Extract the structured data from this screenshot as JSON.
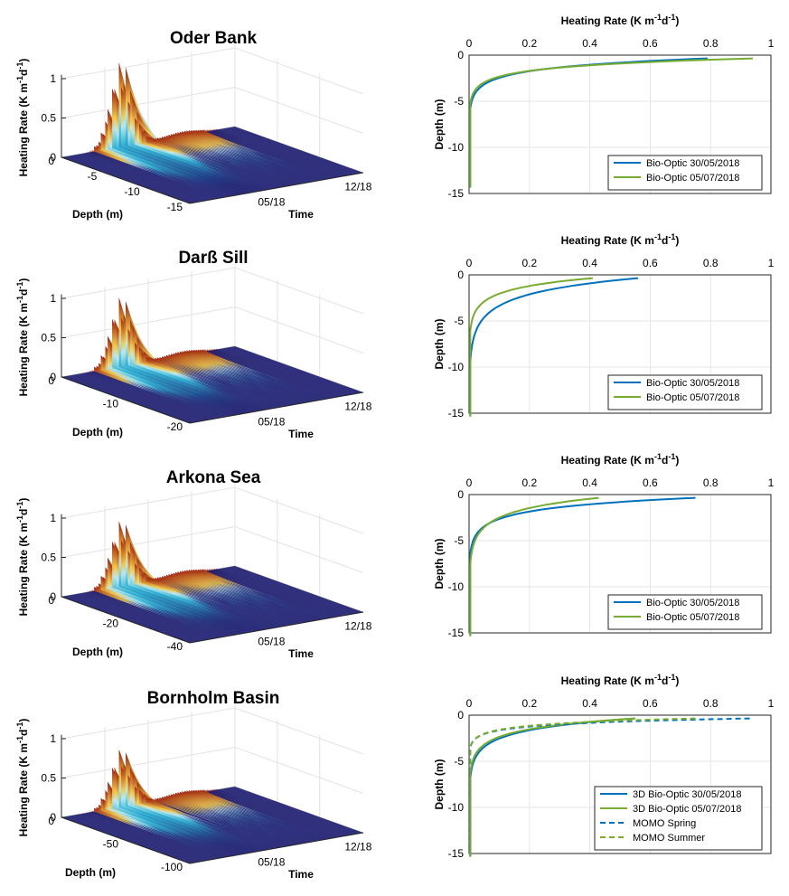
{
  "colors": {
    "spring": "#0072BD",
    "summer": "#77AC30",
    "surface_low": "#1a1a6e",
    "surface_mid": "#34b5d6",
    "surface_high": "#f2c94c",
    "surface_peak": "#9a1b0c"
  },
  "chart_data": [
    {
      "type": "area",
      "title": "Oder Bank",
      "xlabel": "Depth (m)",
      "ylabel": "Time",
      "zlabel": "Heating Rate (K m^-1 d^-1)",
      "depth_ticks": [
        "0",
        "-5",
        "-10",
        "-15"
      ],
      "depth_min": -15,
      "time_ticks": [
        "05/18",
        "12/18"
      ],
      "z_ticks": [
        "0",
        "0.5",
        "1"
      ],
      "zlim": [
        0,
        1
      ],
      "peak_heating_rate": 1.1
    },
    {
      "type": "line",
      "title": "",
      "xlabel": "Heating Rate (K m^-1 d^-1)",
      "ylabel": "Depth (m)",
      "xlim": [
        0,
        1
      ],
      "ylim": [
        -15,
        0
      ],
      "x_ticks": [
        "0",
        "0.2",
        "0.4",
        "0.6",
        "0.8",
        "1"
      ],
      "y_ticks": [
        "0",
        "-5",
        "-10",
        "-15"
      ],
      "series": [
        {
          "name": "Bio-Optic 30/05/2018",
          "style": "solid",
          "color": "spring",
          "surface_value": 0.79,
          "attenuation": 0.85,
          "bottom": -14
        },
        {
          "name": "Bio-Optic 05/07/2018",
          "style": "solid",
          "color": "summer",
          "surface_value": 0.94,
          "attenuation": 1.0,
          "bottom": -14
        }
      ]
    },
    {
      "type": "area",
      "title": "Darß Sill",
      "xlabel": "Depth (m)",
      "ylabel": "Time",
      "zlabel": "Heating Rate (K m^-1 d^-1)",
      "depth_ticks": [
        "0",
        "-10",
        "-20"
      ],
      "depth_min": -20,
      "time_ticks": [
        "05/18",
        "12/18"
      ],
      "z_ticks": [
        "0",
        "0.5",
        "1"
      ],
      "zlim": [
        0,
        1
      ],
      "peak_heating_rate": 0.9
    },
    {
      "type": "line",
      "title": "",
      "xlabel": "Heating Rate (K m^-1 d^-1)",
      "ylabel": "Depth (m)",
      "xlim": [
        0,
        1
      ],
      "ylim": [
        -15,
        0
      ],
      "x_ticks": [
        "0",
        "0.2",
        "0.4",
        "0.6",
        "0.8",
        "1"
      ],
      "y_ticks": [
        "0",
        "-5",
        "-10",
        "-15"
      ],
      "series": [
        {
          "name": "Bio-Optic 30/05/2018",
          "style": "solid",
          "color": "spring",
          "surface_value": 0.56,
          "attenuation": 0.45,
          "bottom": -15
        },
        {
          "name": "Bio-Optic 05/07/2018",
          "style": "solid",
          "color": "summer",
          "surface_value": 0.41,
          "attenuation": 0.7,
          "bottom": -15
        }
      ]
    },
    {
      "type": "area",
      "title": "Arkona Sea",
      "xlabel": "Depth (m)",
      "ylabel": "Time",
      "zlabel": "Heating Rate (K m^-1 d^-1)",
      "depth_ticks": [
        "0",
        "-20",
        "-40"
      ],
      "depth_min": -40,
      "time_ticks": [
        "05/18",
        "12/18"
      ],
      "z_ticks": [
        "0",
        "0.5",
        "1"
      ],
      "zlim": [
        0,
        1
      ],
      "peak_heating_rate": 0.85
    },
    {
      "type": "line",
      "title": "",
      "xlabel": "Heating Rate (K m^-1 d^-1)",
      "ylabel": "Depth (m)",
      "xlim": [
        0,
        1
      ],
      "ylim": [
        -15,
        0
      ],
      "x_ticks": [
        "0",
        "0.2",
        "0.4",
        "0.6",
        "0.8",
        "1"
      ],
      "y_ticks": [
        "0",
        "-5",
        "-10",
        "-15"
      ],
      "series": [
        {
          "name": "Bio-Optic 30/05/2018",
          "style": "solid",
          "color": "spring",
          "surface_value": 0.75,
          "attenuation": 0.75,
          "bottom": -15
        },
        {
          "name": "Bio-Optic 05/07/2018",
          "style": "solid",
          "color": "summer",
          "surface_value": 0.43,
          "attenuation": 0.55,
          "bottom": -15
        }
      ]
    },
    {
      "type": "area",
      "title": "Bornholm Basin",
      "xlabel": "Depth (m)",
      "ylabel": "Time",
      "zlabel": "Heating Rate (K m^-1 d^-1)",
      "depth_ticks": [
        "0",
        "-50",
        "-100"
      ],
      "depth_min": -100,
      "time_ticks": [
        "05/18",
        "12/18"
      ],
      "z_ticks": [
        "0",
        "0.5",
        "1"
      ],
      "zlim": [
        0,
        1
      ],
      "peak_heating_rate": 0.75
    },
    {
      "type": "line",
      "title": "",
      "xlabel": "Heating Rate (K m^-1 d^-1)",
      "ylabel": "Depth (m)",
      "xlim": [
        0,
        1
      ],
      "ylim": [
        -15,
        0
      ],
      "x_ticks": [
        "0",
        "0.2",
        "0.4",
        "0.6",
        "0.8",
        "1"
      ],
      "y_ticks": [
        "0",
        "-5",
        "-10",
        "-15"
      ],
      "series": [
        {
          "name": "3D Bio-Optic 30/05/2018",
          "style": "solid",
          "color": "spring",
          "surface_value": 0.55,
          "attenuation": 0.65,
          "bottom": -15
        },
        {
          "name": "3D Bio-Optic 05/07/2018",
          "style": "solid",
          "color": "summer",
          "surface_value": 0.55,
          "attenuation": 0.72,
          "bottom": -15
        },
        {
          "name": "MOMO Spring",
          "style": "dashed",
          "color": "spring",
          "surface_value": 0.93,
          "attenuation": 1.6,
          "bottom": -15
        },
        {
          "name": "MOMO Summer",
          "style": "dashed",
          "color": "summer",
          "surface_value": 0.75,
          "attenuation": 1.5,
          "bottom": -15
        }
      ]
    }
  ]
}
